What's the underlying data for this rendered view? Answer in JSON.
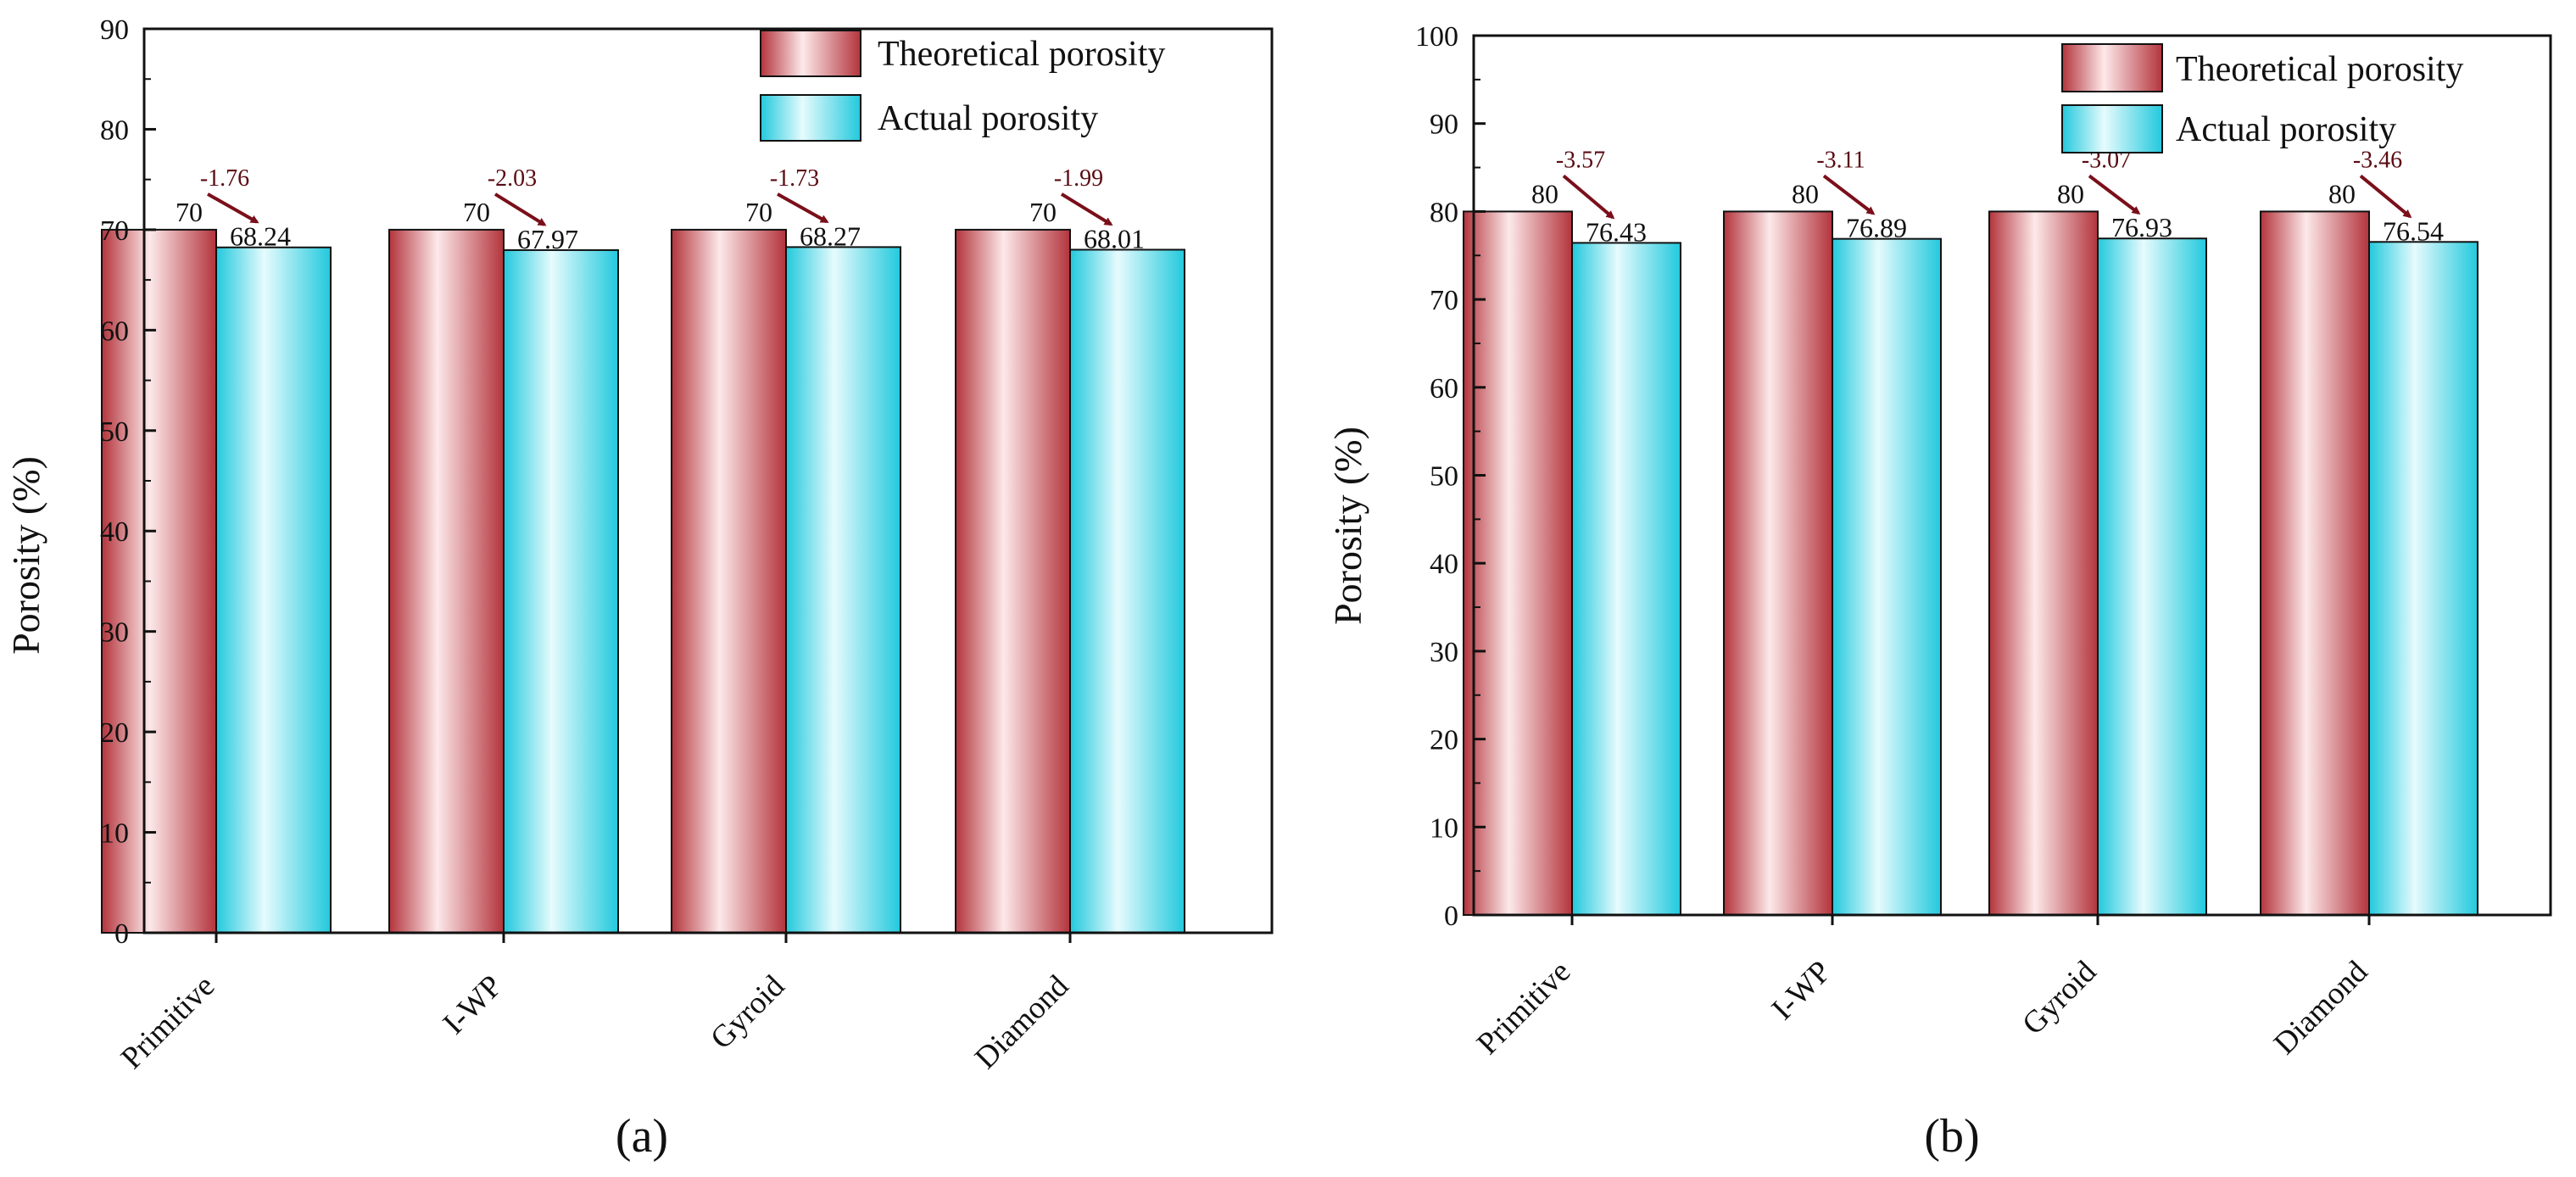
{
  "chart_data": [
    {
      "type": "bar",
      "panel_label": "(a)",
      "categories": [
        "Primitive",
        "I-WP",
        "Gyroid",
        "Diamond"
      ],
      "series": [
        {
          "name": "Theoretical porosity",
          "values": [
            70,
            70,
            70,
            70
          ],
          "value_labels": [
            "70",
            "70",
            "70",
            "70"
          ]
        },
        {
          "name": "Actual porosity",
          "values": [
            68.24,
            67.97,
            68.27,
            68.01
          ],
          "value_labels": [
            "68.24",
            "67.97",
            "68.27",
            "68.01"
          ]
        }
      ],
      "differences": [
        "-1.76",
        "-2.03",
        "-1.73",
        "-1.99"
      ],
      "xlabel": "",
      "ylabel": "Porosity (%)",
      "ylim": [
        0,
        90
      ],
      "yticks": [
        0,
        10,
        20,
        30,
        40,
        50,
        60,
        70,
        80,
        90
      ],
      "ytick_labels": [
        "0",
        "10",
        "20",
        "30",
        "40",
        "50",
        "60",
        "70",
        "80",
        "90"
      ],
      "legend_position": "top-right",
      "grid": false
    },
    {
      "type": "bar",
      "panel_label": "(b)",
      "categories": [
        "Primitive",
        "I-WP",
        "Gyroid",
        "Diamond"
      ],
      "series": [
        {
          "name": "Theoretical porosity",
          "values": [
            80,
            80,
            80,
            80
          ],
          "value_labels": [
            "80",
            "80",
            "80",
            "80"
          ]
        },
        {
          "name": "Actual porosity",
          "values": [
            76.43,
            76.89,
            76.93,
            76.54
          ],
          "value_labels": [
            "76.43",
            "76.89",
            "76.93",
            "76.54"
          ]
        }
      ],
      "differences": [
        "-3.57",
        "-3.11",
        "-3.07",
        "-3.46"
      ],
      "xlabel": "",
      "ylabel": "Porosity (%)",
      "ylim": [
        0,
        100
      ],
      "yticks": [
        0,
        10,
        20,
        30,
        40,
        50,
        60,
        70,
        80,
        90,
        100
      ],
      "ytick_labels": [
        "0",
        "10",
        "20",
        "30",
        "40",
        "50",
        "60",
        "70",
        "80",
        "90",
        "100"
      ],
      "legend_position": "top-right",
      "grid": false
    }
  ],
  "colors": {
    "theoretical_edge": "#b3343c",
    "theoretical_light": "#fde9ea",
    "actual_edge": "#22c9dd",
    "actual_light": "#e6fbfd",
    "arrow": "#7a0f1a",
    "diff_text": "#5a0b12",
    "axis": "#111111"
  }
}
